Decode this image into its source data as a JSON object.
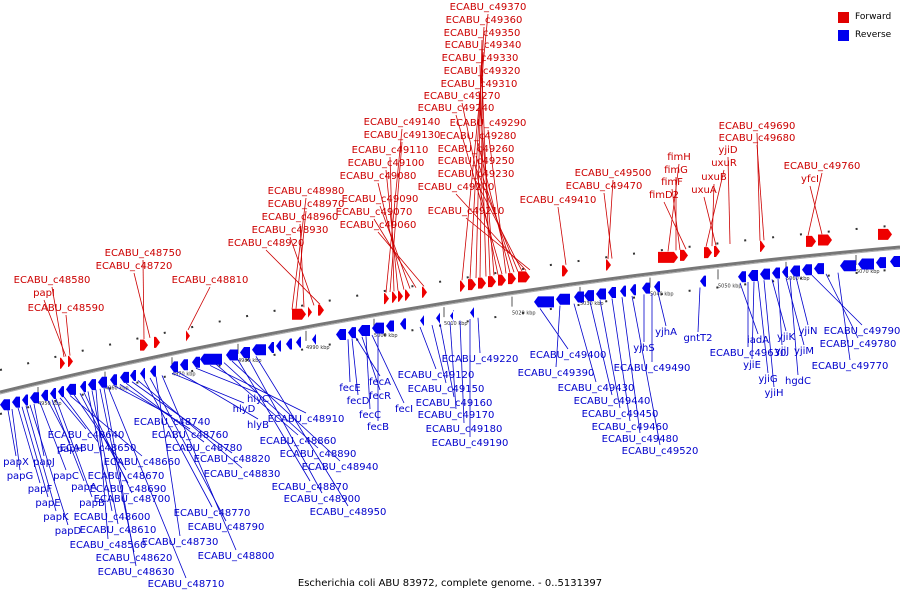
{
  "caption": "Escherichia coli ABU 83972, complete genome. - 0..5131397",
  "legend": [
    {
      "label": "Forward",
      "color": "#e00000"
    },
    {
      "label": "Reverse",
      "color": "#0000ee"
    }
  ],
  "colors": {
    "forward": "#ee0000",
    "reverse": "#0000ee",
    "axis": "#777777"
  },
  "scale_labels": [
    "4950 kbp",
    "4960 kbp",
    "4970 kbp",
    "4980 kbp",
    "4990 kbp",
    "5000 kbp",
    "5010 kbp",
    "5020 kbp",
    "5030 kbp",
    "5040 kbp",
    "5050 kbp",
    "5060 kbp",
    "5070 kbp"
  ],
  "forward_labels": [
    "ECABU_c48580",
    "papI",
    "ECABU_c48590",
    "ECABU_c48750",
    "ECABU_c48720",
    "ECABU_c48810",
    "ECABU_c48980",
    "ECABU_c48970",
    "ECABU_c48960",
    "ECABU_c48930",
    "ECABU_c48920",
    "ECABU_c49140",
    "ECABU_c49130",
    "ECABU_c49110",
    "ECABU_c49100",
    "ECABU_c49080",
    "ECABU_c49090",
    "ECABU_c49070",
    "ECABU_c49060",
    "ECABU_c49370",
    "ECABU_c49360",
    "ECABU_c49350",
    "ECABU_c49340",
    "ECABU_c49330",
    "ECABU_c49320",
    "ECABU_c49310",
    "ECABU_c49270",
    "ECABU_c49240",
    "ECABU_c49290",
    "ECABU_c49280",
    "ECABU_c49260",
    "ECABU_c49250",
    "ECABU_c49230",
    "ECABU_c49200",
    "ECABU_c49210",
    "ECABU_c49410",
    "ECABU_c49500",
    "ECABU_c49470",
    "fimH",
    "fimG",
    "fimF",
    "fimD2",
    "uxuR",
    "uxuB",
    "uxuA",
    "yjiD",
    "ECABU_c49690",
    "ECABU_c49680",
    "ECABU_c49760",
    "yfcI"
  ],
  "reverse_labels": [
    "papX",
    "papG",
    "papF",
    "papE",
    "papK",
    "papD",
    "papJ",
    "papC",
    "papH",
    "papA",
    "papB",
    "ECABU_c48640",
    "ECABU_c48650",
    "ECABU_c48660",
    "ECABU_c48670",
    "ECABU_c48690",
    "ECABU_c48700",
    "ECABU_c48600",
    "ECABU_c48610",
    "ECABU_c48560",
    "ECABU_c48620",
    "ECABU_c48630",
    "ECABU_c48710",
    "ECABU_c48740",
    "ECABU_c48760",
    "ECABU_c48780",
    "ECABU_c48820",
    "ECABU_c48830",
    "ECABU_c48770",
    "ECABU_c48790",
    "ECABU_c48730",
    "ECABU_c48800",
    "hlyD",
    "hlyB",
    "hlyC",
    "ECABU_c48910",
    "ECABU_c48860",
    "ECABU_c48890",
    "ECABU_c48940",
    "ECABU_c48870",
    "ECABU_c48900",
    "ECABU_c48950",
    "fecE",
    "fecD",
    "fecA",
    "fecR",
    "fecC",
    "fecI",
    "fecB",
    "ECABU_c49120",
    "ECABU_c49150",
    "ECABU_c49160",
    "ECABU_c49170",
    "ECABU_c49180",
    "ECABU_c49190",
    "ECABU_c49220",
    "ECABU_c49400",
    "ECABU_c49390",
    "ECABU_c49430",
    "ECABU_c49440",
    "ECABU_c49450",
    "ECABU_c49460",
    "ECABU_c49480",
    "ECABU_c49520",
    "yjhS",
    "ECABU_c49490",
    "yjhA",
    "gntT2",
    "iadA",
    "ECABU_c49630",
    "yjiE",
    "yjiG",
    "yjiH",
    "yjiK",
    "yjiJ",
    "yjiM",
    "hgdC",
    "yjiN",
    "ECABU_c49790",
    "ECABU_c49780",
    "ECABU_c49770"
  ]
}
